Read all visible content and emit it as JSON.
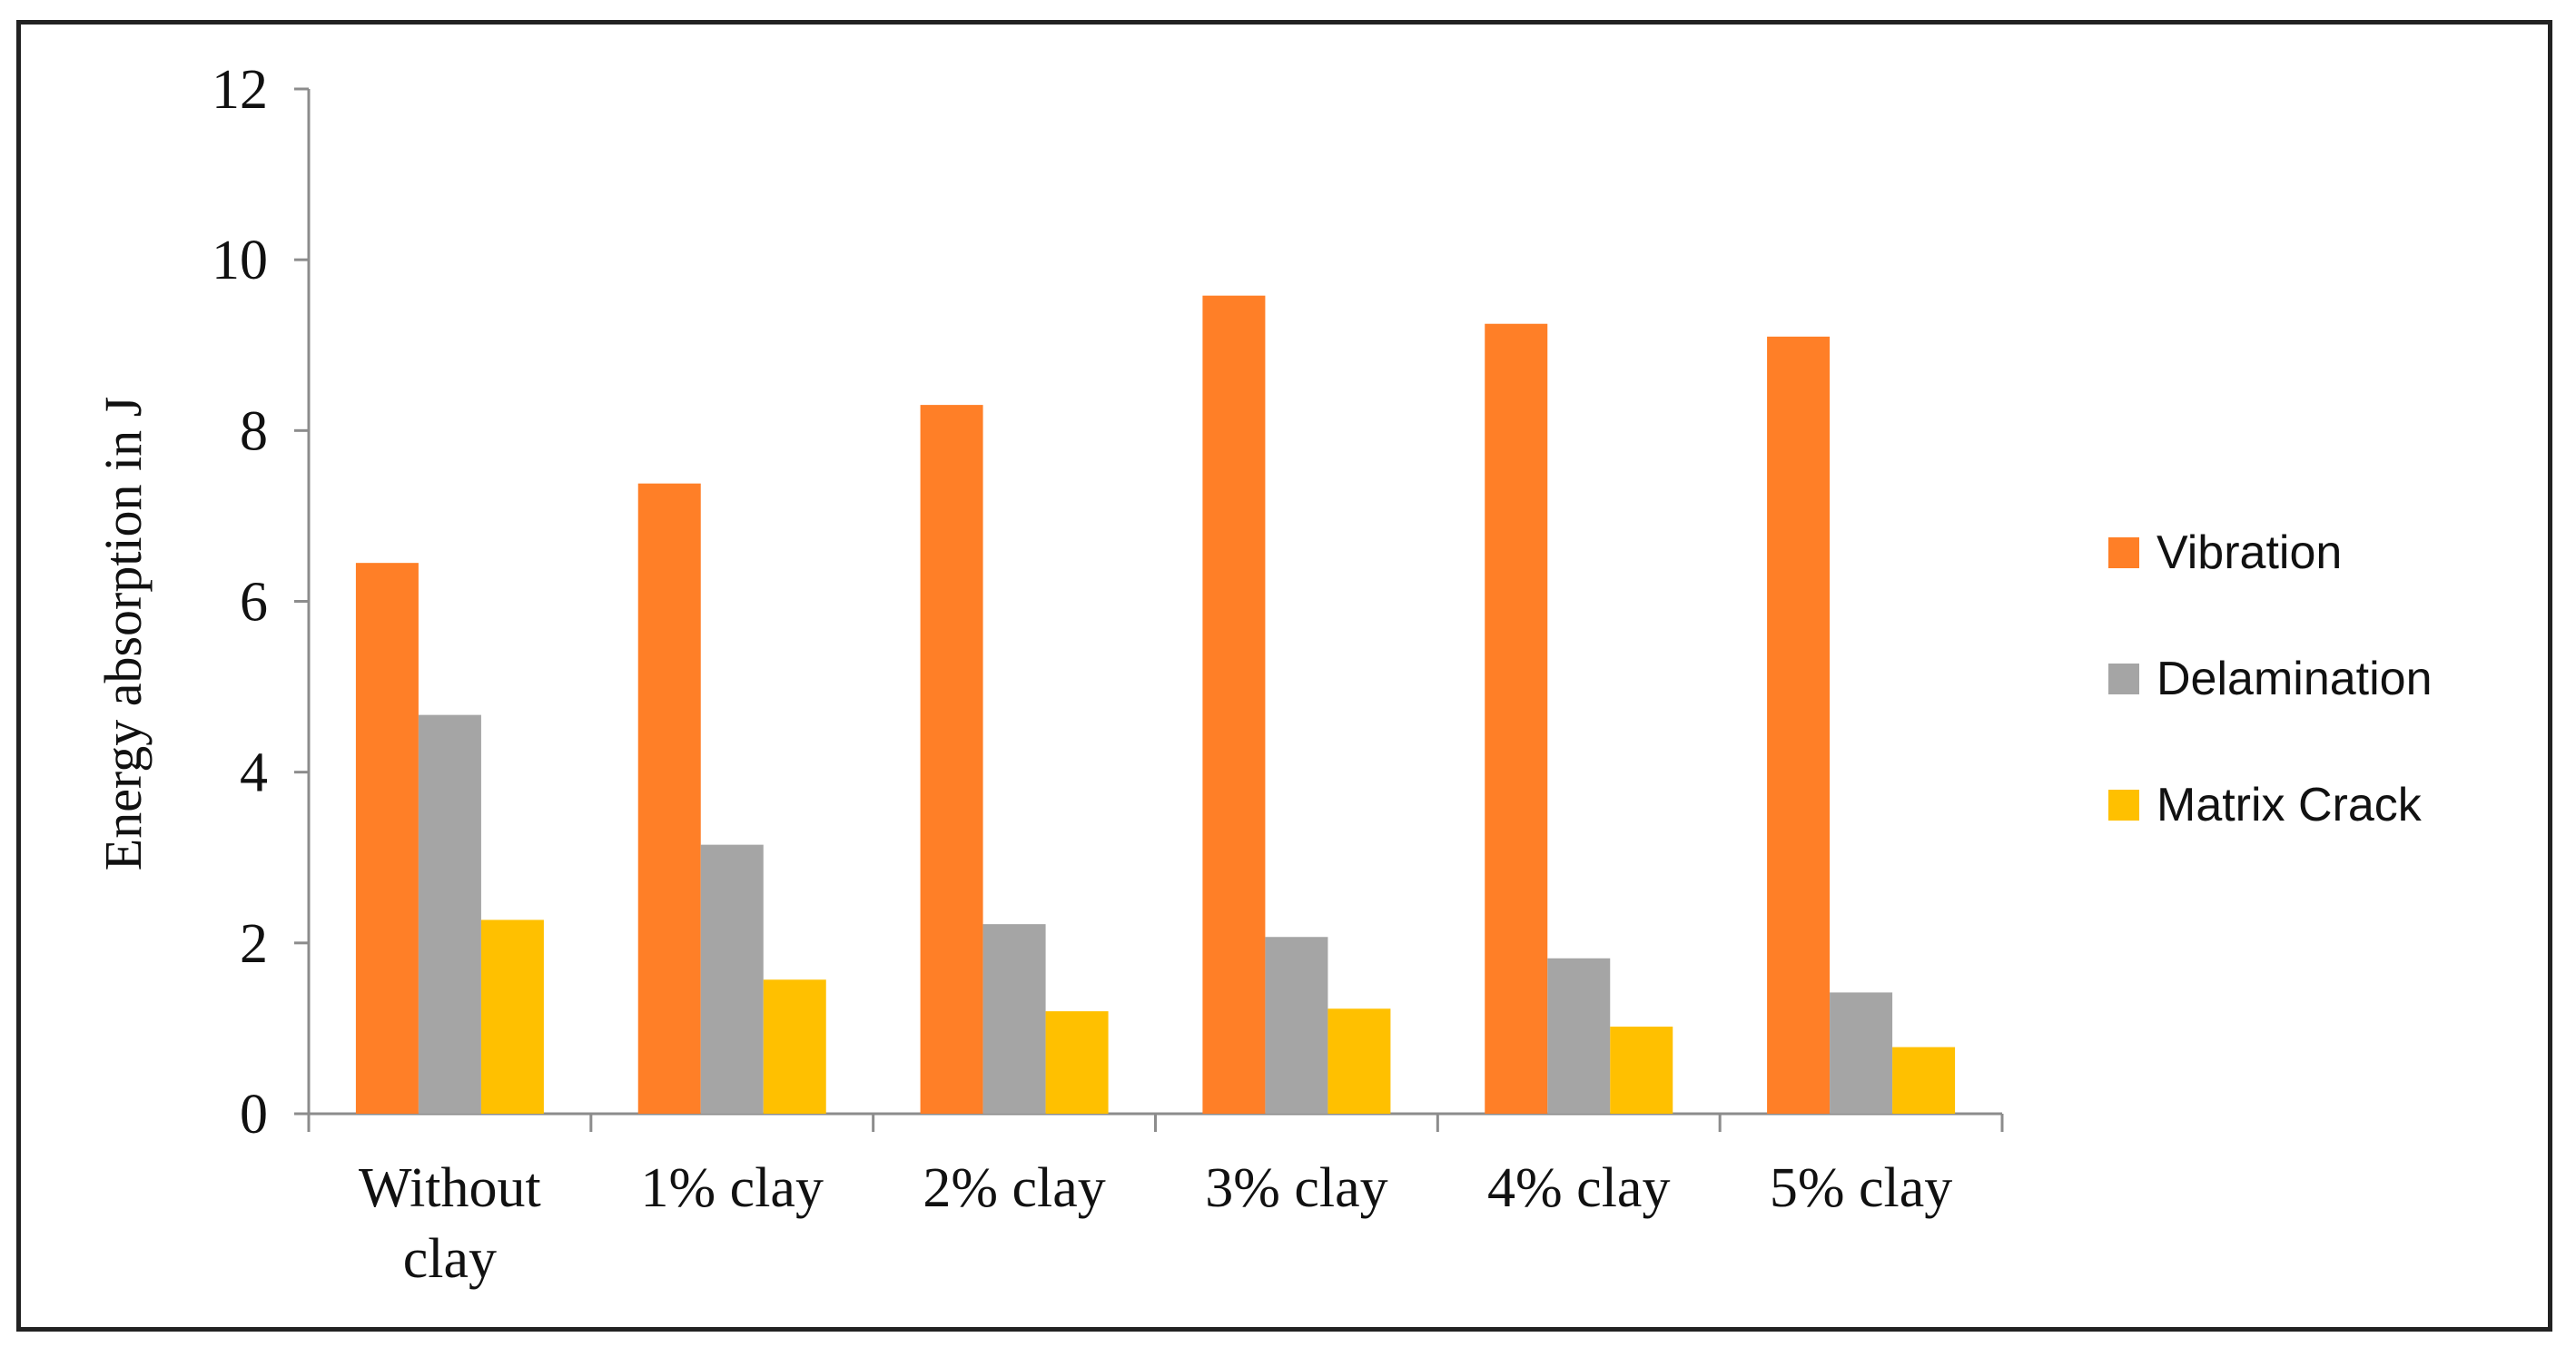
{
  "chart_data": {
    "type": "bar",
    "categories": [
      "Without clay",
      "1% clay",
      "2% clay",
      "3% clay",
      "4% clay",
      "5% clay"
    ],
    "category_lines": [
      [
        "Without",
        "clay"
      ],
      [
        "1% clay"
      ],
      [
        "2% clay"
      ],
      [
        "3% clay"
      ],
      [
        "4% clay"
      ],
      [
        "5% clay"
      ]
    ],
    "series": [
      {
        "name": "Vibration",
        "color": "#FF7F27",
        "values": [
          6.45,
          7.38,
          8.3,
          9.58,
          9.25,
          9.1
        ]
      },
      {
        "name": "Delamination",
        "color": "#A5A5A5",
        "values": [
          4.67,
          3.15,
          2.22,
          2.07,
          1.82,
          1.42
        ]
      },
      {
        "name": "Matrix Crack",
        "color": "#FFC000",
        "values": [
          2.27,
          1.57,
          1.2,
          1.23,
          1.02,
          0.78
        ]
      }
    ],
    "title": "",
    "xlabel": "",
    "ylabel": "Energy absorption in J",
    "ylim": [
      0,
      12
    ],
    "yticks": [
      0,
      2,
      4,
      6,
      8,
      10,
      12
    ],
    "grid": false,
    "legend_position": "right"
  }
}
